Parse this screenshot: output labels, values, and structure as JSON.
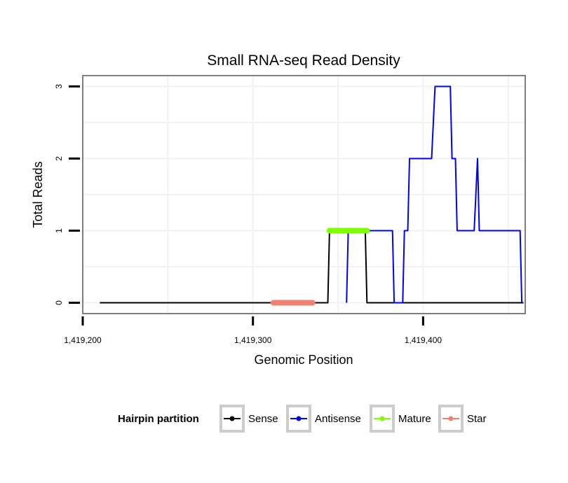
{
  "chart_data": {
    "type": "line",
    "title": "Small RNA-seq Read Density",
    "xlabel": "Genomic Position",
    "ylabel": "Total Reads",
    "xlim": [
      1419200,
      1419460
    ],
    "ylim": [
      -0.15,
      3.15
    ],
    "x_ticks": [
      {
        "value": 1419200,
        "label": "1,419,200"
      },
      {
        "value": 1419300,
        "label": "1,419,300"
      },
      {
        "value": 1419400,
        "label": "1,419,400"
      }
    ],
    "y_ticks": [
      {
        "value": 0,
        "label": "0"
      },
      {
        "value": 1,
        "label": "1"
      },
      {
        "value": 2,
        "label": "2"
      },
      {
        "value": 3,
        "label": "3"
      }
    ],
    "grid": true,
    "legend_position": "bottom",
    "legend_title": "Hairpin partition",
    "series": [
      {
        "name": "Sense",
        "color": "#000000",
        "points": [
          [
            1419210,
            0
          ],
          [
            1419344,
            0
          ],
          [
            1419345,
            1
          ],
          [
            1419366,
            1
          ],
          [
            1419367,
            0
          ],
          [
            1419459,
            0
          ]
        ]
      },
      {
        "name": "Antisense",
        "color": "#0000ff",
        "points": [
          [
            1419355,
            0
          ],
          [
            1419356,
            1
          ],
          [
            1419382,
            1
          ],
          [
            1419383,
            0
          ],
          [
            1419388,
            0
          ],
          [
            1419389,
            1
          ],
          [
            1419391,
            1
          ],
          [
            1419392,
            2
          ],
          [
            1419405,
            2
          ],
          [
            1419407,
            3
          ],
          [
            1419416,
            3
          ],
          [
            1419417,
            2
          ],
          [
            1419419,
            2
          ],
          [
            1419420,
            1
          ],
          [
            1419430,
            1
          ],
          [
            1419432,
            2
          ],
          [
            1419433,
            1
          ],
          [
            1419457,
            1
          ],
          [
            1419458,
            0
          ]
        ]
      },
      {
        "name": "Mature",
        "color": "#7fff00",
        "points": [
          [
            1419345,
            1
          ],
          [
            1419367,
            1
          ]
        ]
      },
      {
        "name": "Star",
        "color": "#f08070",
        "points": [
          [
            1419312,
            0
          ],
          [
            1419335,
            0
          ]
        ]
      }
    ]
  }
}
